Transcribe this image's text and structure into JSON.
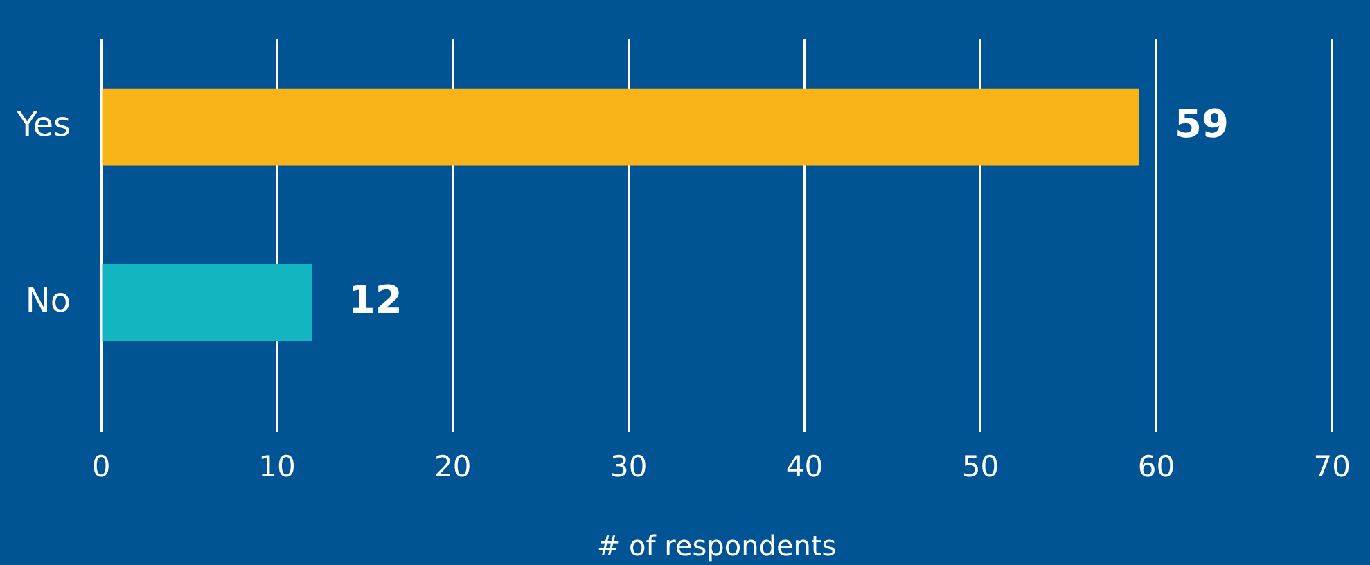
{
  "chart_data": {
    "type": "bar",
    "orientation": "horizontal",
    "categories": [
      "Yes",
      "No"
    ],
    "values": [
      59,
      12
    ],
    "colors": [
      "#f9b418",
      "#12b5c0"
    ],
    "xlabel": "# of respondents",
    "xlim": [
      0,
      70
    ],
    "xticks": [
      0,
      10,
      20,
      30,
      40,
      50,
      60,
      70
    ],
    "grid": "x",
    "legend": false,
    "data_labels": true
  }
}
